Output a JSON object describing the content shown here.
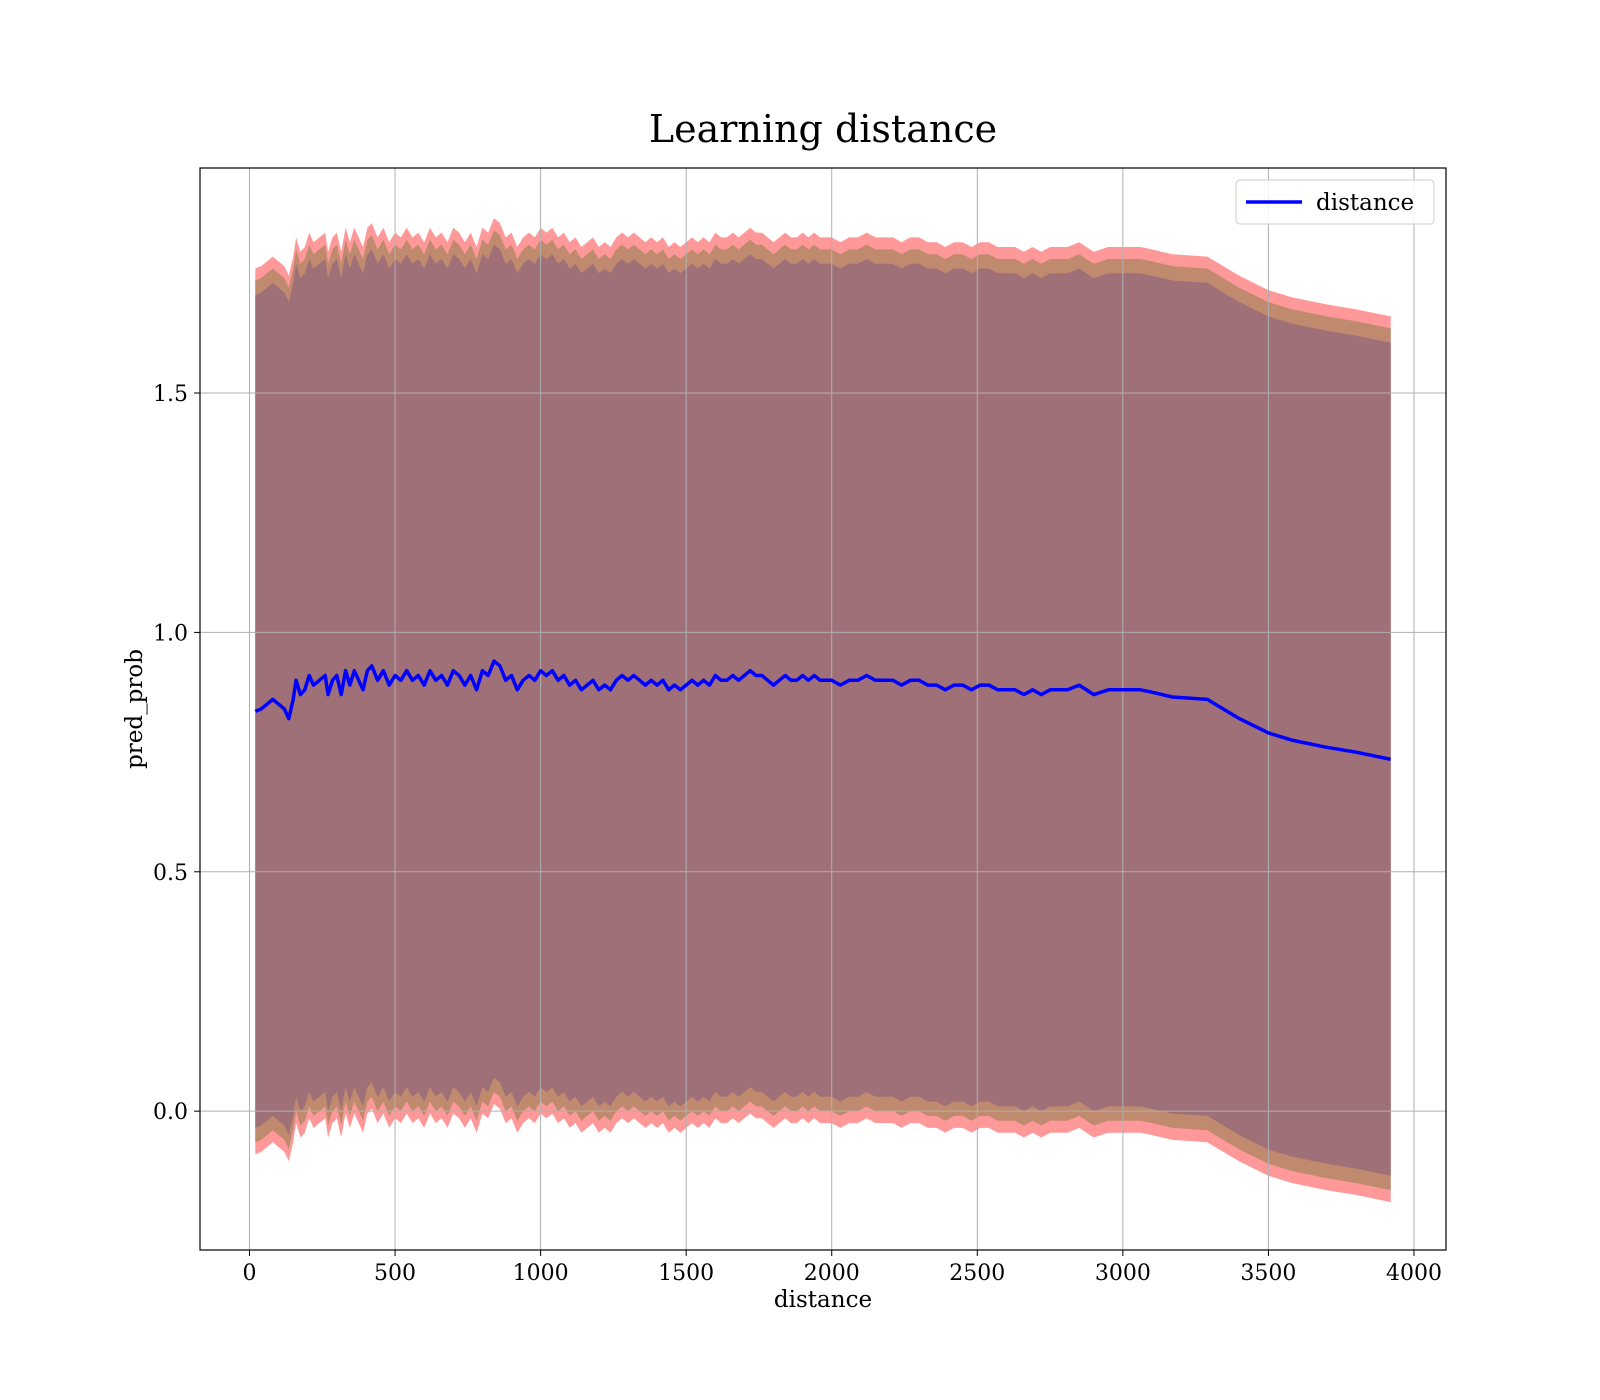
{
  "chart_data": {
    "type": "line",
    "title": "Learning distance",
    "xlabel": "distance",
    "ylabel": "pred_prob",
    "xlim": [
      -170,
      4110
    ],
    "ylim": [
      -0.29,
      1.97
    ],
    "xticks": [
      0,
      500,
      1000,
      1500,
      2000,
      2500,
      3000,
      3500,
      4000
    ],
    "yticks": [
      0.0,
      0.5,
      1.0,
      1.5
    ],
    "xtick_labels": [
      "0",
      "500",
      "1000",
      "1500",
      "2000",
      "2500",
      "3000",
      "3500",
      "4000"
    ],
    "ytick_labels": [
      "0.0",
      "0.5",
      "1.0",
      "1.5"
    ],
    "grid": true,
    "legend": {
      "position": "top-right",
      "entries": [
        "distance"
      ]
    },
    "colors": {
      "line": "#0000ff",
      "band_outer": "#ff9999",
      "band_middle": "#c08a6e",
      "band_inner": "#a07079"
    },
    "band_offsets": {
      "inner": 0.87,
      "middle": 0.9,
      "outer": 0.925
    },
    "series": [
      {
        "name": "distance",
        "x": [
          20,
          40,
          60,
          80,
          100,
          120,
          135,
          150,
          160,
          175,
          190,
          205,
          220,
          240,
          260,
          270,
          285,
          300,
          315,
          330,
          345,
          360,
          375,
          390,
          405,
          420,
          440,
          460,
          480,
          500,
          520,
          540,
          560,
          580,
          600,
          620,
          640,
          660,
          680,
          700,
          720,
          740,
          760,
          780,
          800,
          820,
          840,
          860,
          880,
          900,
          920,
          940,
          960,
          980,
          1000,
          1020,
          1040,
          1060,
          1080,
          1100,
          1120,
          1140,
          1160,
          1180,
          1200,
          1220,
          1240,
          1260,
          1280,
          1300,
          1320,
          1340,
          1360,
          1380,
          1400,
          1420,
          1440,
          1460,
          1480,
          1500,
          1520,
          1540,
          1560,
          1580,
          1600,
          1620,
          1640,
          1660,
          1680,
          1700,
          1720,
          1740,
          1760,
          1780,
          1800,
          1820,
          1840,
          1860,
          1880,
          1900,
          1920,
          1940,
          1960,
          1980,
          2000,
          2030,
          2060,
          2090,
          2120,
          2150,
          2180,
          2210,
          2240,
          2270,
          2300,
          2330,
          2360,
          2390,
          2420,
          2450,
          2480,
          2510,
          2540,
          2570,
          2600,
          2630,
          2660,
          2690,
          2720,
          2750,
          2780,
          2810,
          2850,
          2900,
          2950,
          3000,
          3060,
          3100,
          3170,
          3290,
          3400,
          3500,
          3580,
          3700,
          3800,
          3920
        ],
        "values": [
          0.835,
          0.84,
          0.85,
          0.86,
          0.85,
          0.84,
          0.82,
          0.86,
          0.9,
          0.87,
          0.88,
          0.91,
          0.89,
          0.9,
          0.91,
          0.87,
          0.9,
          0.91,
          0.87,
          0.92,
          0.89,
          0.92,
          0.9,
          0.88,
          0.92,
          0.93,
          0.9,
          0.92,
          0.89,
          0.91,
          0.9,
          0.92,
          0.9,
          0.91,
          0.89,
          0.92,
          0.9,
          0.91,
          0.89,
          0.92,
          0.91,
          0.89,
          0.91,
          0.88,
          0.92,
          0.91,
          0.94,
          0.93,
          0.9,
          0.91,
          0.88,
          0.9,
          0.91,
          0.9,
          0.92,
          0.91,
          0.92,
          0.9,
          0.91,
          0.89,
          0.9,
          0.88,
          0.89,
          0.9,
          0.88,
          0.89,
          0.88,
          0.9,
          0.91,
          0.9,
          0.91,
          0.9,
          0.89,
          0.9,
          0.89,
          0.9,
          0.88,
          0.89,
          0.88,
          0.89,
          0.9,
          0.89,
          0.9,
          0.89,
          0.91,
          0.9,
          0.9,
          0.91,
          0.9,
          0.91,
          0.92,
          0.91,
          0.91,
          0.9,
          0.89,
          0.9,
          0.91,
          0.9,
          0.9,
          0.91,
          0.9,
          0.91,
          0.9,
          0.9,
          0.9,
          0.89,
          0.9,
          0.9,
          0.91,
          0.9,
          0.9,
          0.9,
          0.89,
          0.9,
          0.9,
          0.89,
          0.89,
          0.88,
          0.89,
          0.89,
          0.88,
          0.89,
          0.89,
          0.88,
          0.88,
          0.88,
          0.87,
          0.88,
          0.87,
          0.88,
          0.88,
          0.88,
          0.89,
          0.87,
          0.88,
          0.88,
          0.88,
          0.875,
          0.865,
          0.86,
          0.82,
          0.79,
          0.775,
          0.76,
          0.75,
          0.735
        ]
      }
    ]
  }
}
